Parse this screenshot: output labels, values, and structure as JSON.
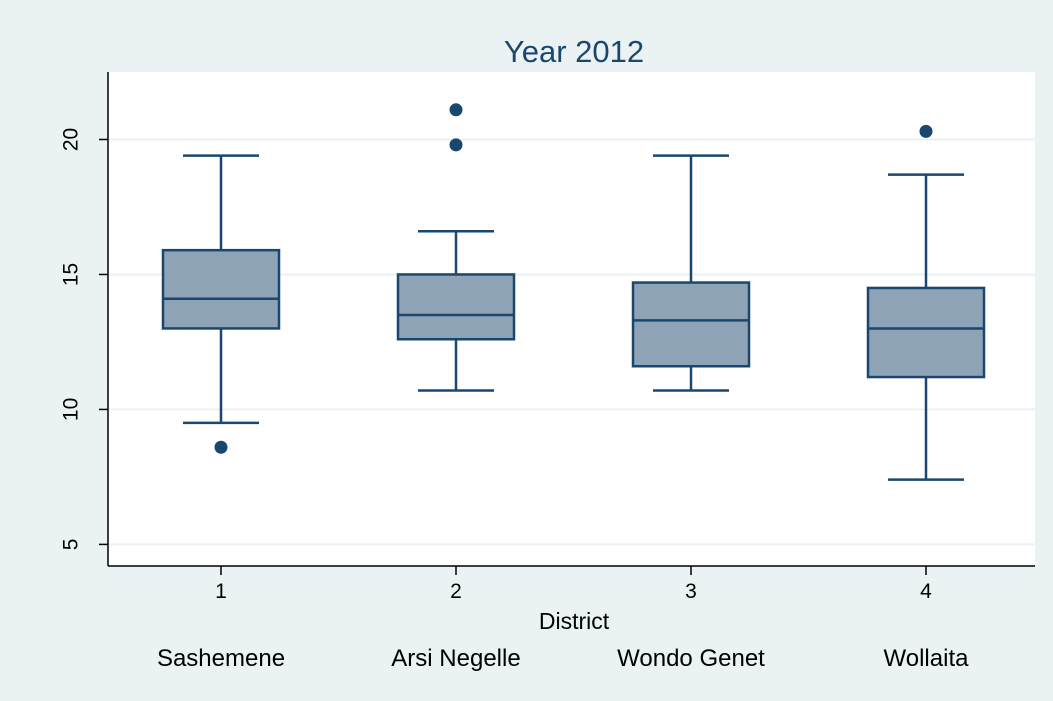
{
  "chart_data": {
    "type": "box",
    "title": "Year 2012",
    "xlabel": "District",
    "ylabel": "",
    "ylim": [
      4.2,
      22.5
    ],
    "yticks": [
      5,
      10,
      15,
      20
    ],
    "grid": true,
    "colors": {
      "background": "#eaf2f3",
      "plot_background": "#ffffff",
      "box_fill": "#8ea3b6",
      "stroke": "#1a476f",
      "grid": "#eaf2f3",
      "text": "#000000",
      "title": "#1a476f"
    },
    "categories": [
      {
        "tick": "1",
        "name": "Sashemene",
        "whisker_low": 9.5,
        "q1": 13.0,
        "median": 14.1,
        "q3": 15.9,
        "whisker_high": 19.4,
        "outliers": [
          8.6
        ]
      },
      {
        "tick": "2",
        "name": "Arsi Negelle",
        "whisker_low": 10.7,
        "q1": 12.6,
        "median": 13.5,
        "q3": 15.0,
        "whisker_high": 16.6,
        "outliers": [
          19.8,
          21.1
        ]
      },
      {
        "tick": "3",
        "name": "Wondo Genet",
        "whisker_low": 10.7,
        "q1": 11.6,
        "median": 13.3,
        "q3": 14.7,
        "whisker_high": 19.4,
        "outliers": []
      },
      {
        "tick": "4",
        "name": "Wollaita",
        "whisker_low": 7.4,
        "q1": 11.2,
        "median": 13.0,
        "q3": 14.5,
        "whisker_high": 18.7,
        "outliers": [
          20.3
        ]
      }
    ]
  }
}
